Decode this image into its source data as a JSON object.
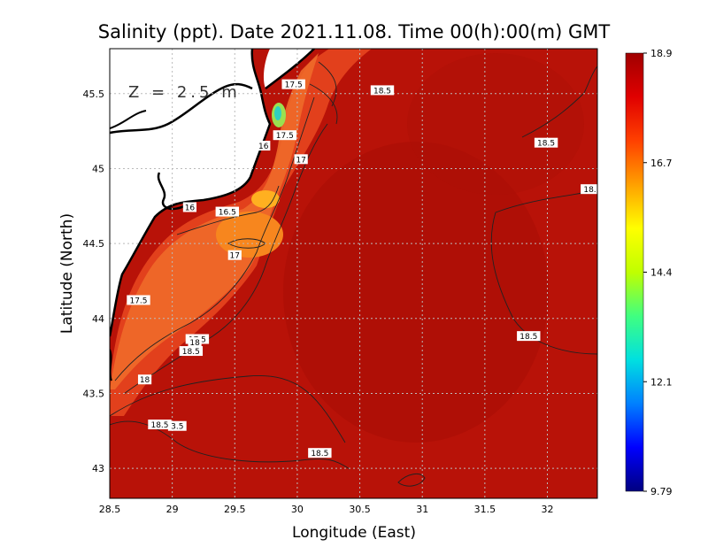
{
  "chart_data": {
    "type": "heatmap",
    "title": "Salinity (ppt). Date 2021.11.08. Time 00(h):00(m) GMT",
    "xlabel": "Longitude (East)",
    "ylabel": "Latitude (North)",
    "depth_label": "Z = 2.5 m",
    "xlim": [
      28.5,
      32.4
    ],
    "ylim": [
      42.8,
      45.8
    ],
    "x_ticks": [
      "28.5",
      "29",
      "29.5",
      "30",
      "30.5",
      "31",
      "31.5",
      "32"
    ],
    "y_ticks": [
      "43",
      "43.5",
      "44",
      "44.5",
      "45",
      "45.5"
    ],
    "grid": true,
    "colorbar": {
      "min": 9.79,
      "max": 18.9,
      "tick_labels": [
        "18.9",
        "16.7",
        "14.4",
        "12.1",
        "9.79"
      ],
      "colors": [
        "#000080",
        "#0000ff",
        "#0080ff",
        "#00e0e0",
        "#40ff80",
        "#c0ff00",
        "#ffff00",
        "#ffa000",
        "#ff4000",
        "#e00000",
        "#a00000"
      ]
    },
    "contour_labels": [
      {
        "text": "17.5",
        "lon": 29.97,
        "lat": 45.56
      },
      {
        "text": "18.5",
        "lon": 30.68,
        "lat": 45.52
      },
      {
        "text": "17.5",
        "lon": 29.9,
        "lat": 45.22
      },
      {
        "text": "16",
        "lon": 29.73,
        "lat": 45.15
      },
      {
        "text": "17",
        "lon": 30.03,
        "lat": 45.06
      },
      {
        "text": "18.5",
        "lon": 31.99,
        "lat": 45.17
      },
      {
        "text": "18.",
        "lon": 32.34,
        "lat": 44.86
      },
      {
        "text": "16",
        "lon": 29.14,
        "lat": 44.74
      },
      {
        "text": "16.5",
        "lon": 29.44,
        "lat": 44.71
      },
      {
        "text": "17",
        "lon": 29.5,
        "lat": 44.42
      },
      {
        "text": "17.5",
        "lon": 28.73,
        "lat": 44.12
      },
      {
        "text": "17.5",
        "lon": 29.2,
        "lat": 43.86
      },
      {
        "text": "18",
        "lon": 29.18,
        "lat": 43.84
      },
      {
        "text": "18.5",
        "lon": 29.15,
        "lat": 43.78
      },
      {
        "text": "18.5",
        "lon": 31.85,
        "lat": 43.88
      },
      {
        "text": "18",
        "lon": 28.78,
        "lat": 43.59
      },
      {
        "text": "18.5",
        "lon": 28.9,
        "lat": 43.29
      },
      {
        "text": "3.5",
        "lon": 29.04,
        "lat": 43.28
      },
      {
        "text": "18.5",
        "lon": 30.18,
        "lat": 43.1
      }
    ]
  }
}
